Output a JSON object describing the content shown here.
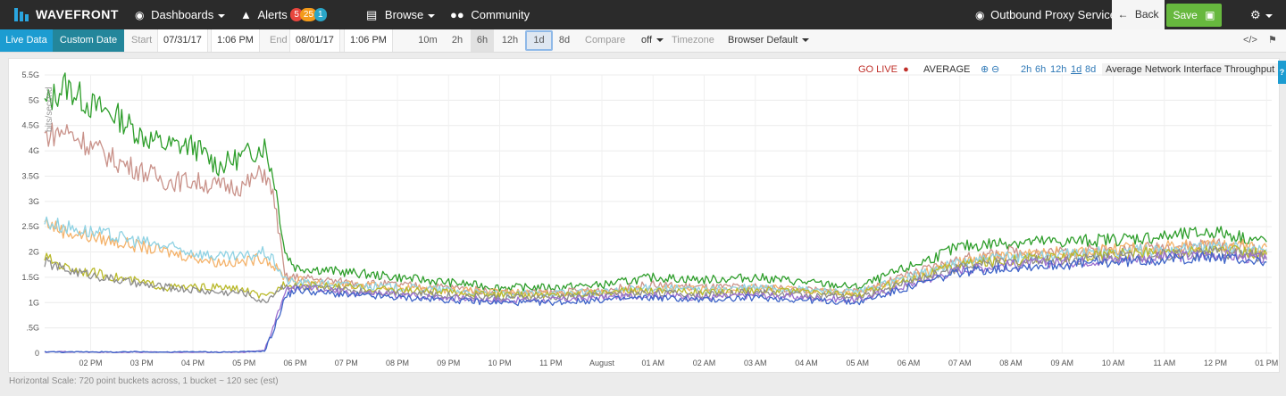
{
  "topbar": {
    "logo": "WAVEFRONT",
    "dashboards": "Dashboards",
    "alerts": "Alerts",
    "alert_counts": [
      "5",
      "25",
      "1"
    ],
    "browse": "Browse",
    "community": "Community",
    "dashboard_name": "Outbound Proxy Service",
    "back": "Back",
    "save": "Save",
    "icons": [
      "dashboard-icon",
      "alert-icon",
      "browse-icon",
      "community-icon",
      "dashboard-icon",
      "back-arrow-icon",
      "save-icon",
      "gear-icon"
    ]
  },
  "toolbar": {
    "live_data": "Live Data",
    "custom_date": "Custom Date",
    "start_label": "Start",
    "start_date": "07/31/17",
    "start_time": "1:06 PM",
    "end_label": "End",
    "end_date": "08/01/17",
    "end_time": "1:06 PM",
    "ranges": [
      "10m",
      "2h",
      "6h",
      "12h",
      "1d",
      "8d"
    ],
    "selected_range": "1d",
    "compare_label": "Compare",
    "compare_value": "off",
    "timezone_label": "Timezone",
    "timezone_value": "Browser Default"
  },
  "chart_controls": {
    "go_live": "GO LIVE",
    "aggregation": "AVERAGE",
    "zoom_ranges": [
      "2h",
      "6h",
      "12h",
      "1d",
      "8d"
    ],
    "title": "Average Network Interface Throughput"
  },
  "footer_note": "Horizontal Scale: 720 point buckets across, 1 bucket ~ 120 sec (est)",
  "chart_data": {
    "type": "line",
    "title": "Average Network Interface Throughput",
    "ylabel": "bits/second",
    "ylim": [
      0,
      5.5
    ],
    "yticks": [
      0,
      0.5,
      1,
      1.5,
      2,
      2.5,
      3,
      3.5,
      4,
      4.5,
      5,
      5.5
    ],
    "ytick_labels": [
      "0",
      ".5G",
      "1G",
      "1.5G",
      "2G",
      "2.5G",
      "3G",
      "3.5G",
      "4G",
      "4.5G",
      "5G",
      "5.5G"
    ],
    "xlim": [
      13.1,
      37.1
    ],
    "xticks": [
      14,
      15,
      16,
      17,
      18,
      19,
      20,
      21,
      22,
      23,
      24,
      25,
      26,
      27,
      28,
      29,
      30,
      31,
      32,
      33,
      34,
      35,
      36,
      37
    ],
    "xtick_labels": [
      "02 PM",
      "03 PM",
      "04 PM",
      "05 PM",
      "06 PM",
      "07 PM",
      "08 PM",
      "09 PM",
      "10 PM",
      "11 PM",
      "August",
      "01 AM",
      "02 AM",
      "03 AM",
      "04 AM",
      "05 AM",
      "06 AM",
      "07 AM",
      "08 AM",
      "09 AM",
      "10 AM",
      "11 AM",
      "12 PM",
      "01 PM"
    ],
    "grid": true,
    "x": [
      13.1,
      13.5,
      14.0,
      14.5,
      15.0,
      15.5,
      16.0,
      16.5,
      17.0,
      17.4,
      17.6,
      17.8,
      18.0,
      19.0,
      20.0,
      21.0,
      22.0,
      23.0,
      24.0,
      25.0,
      26.0,
      27.0,
      28.0,
      29.0,
      30.0,
      31.0,
      32.0,
      33.0,
      34.0,
      35.0,
      36.0,
      37.0
    ],
    "series": [
      {
        "color": "#2e9e2b",
        "values": [
          4.9,
          5.3,
          4.9,
          4.7,
          4.3,
          4.1,
          4.1,
          3.7,
          3.9,
          4.1,
          3.4,
          2.0,
          1.7,
          1.6,
          1.5,
          1.4,
          1.3,
          1.3,
          1.35,
          1.5,
          1.45,
          1.5,
          1.4,
          1.3,
          1.7,
          2.1,
          2.2,
          2.2,
          2.25,
          2.3,
          2.4,
          2.2
        ]
      },
      {
        "color": "#c9928a",
        "values": [
          4.3,
          4.4,
          4.1,
          3.8,
          3.6,
          3.4,
          3.4,
          3.3,
          3.3,
          3.6,
          3.0,
          1.5,
          1.5,
          1.4,
          1.35,
          1.3,
          1.2,
          1.2,
          1.25,
          1.35,
          1.3,
          1.3,
          1.25,
          1.2,
          1.55,
          1.85,
          2.0,
          2.0,
          2.05,
          2.1,
          2.15,
          2.0
        ]
      },
      {
        "color": "#f4b26a",
        "values": [
          2.6,
          2.4,
          2.3,
          2.2,
          2.1,
          2.0,
          1.9,
          1.8,
          1.8,
          1.9,
          1.7,
          1.5,
          1.45,
          1.35,
          1.3,
          1.25,
          1.2,
          1.2,
          1.2,
          1.3,
          1.25,
          1.3,
          1.25,
          1.2,
          1.5,
          1.8,
          1.95,
          2.0,
          2.05,
          2.1,
          2.15,
          2.1
        ]
      },
      {
        "color": "#8fd2e3",
        "values": [
          2.6,
          2.5,
          2.4,
          2.3,
          2.2,
          2.1,
          2.0,
          1.9,
          1.9,
          2.0,
          1.8,
          1.45,
          1.4,
          1.35,
          1.3,
          1.25,
          1.15,
          1.2,
          1.2,
          1.3,
          1.25,
          1.3,
          1.25,
          1.2,
          1.5,
          1.8,
          1.9,
          1.95,
          2.0,
          2.05,
          2.1,
          2.05
        ]
      },
      {
        "color": "#b9b92a",
        "values": [
          1.9,
          1.7,
          1.6,
          1.5,
          1.4,
          1.3,
          1.3,
          1.3,
          1.25,
          1.1,
          1.2,
          1.4,
          1.35,
          1.3,
          1.25,
          1.2,
          1.15,
          1.15,
          1.2,
          1.25,
          1.2,
          1.25,
          1.2,
          1.15,
          1.45,
          1.75,
          1.85,
          1.9,
          1.95,
          2.0,
          2.05,
          1.95
        ]
      },
      {
        "color": "#8c8c8c",
        "values": [
          1.8,
          1.65,
          1.55,
          1.45,
          1.35,
          1.3,
          1.25,
          1.2,
          1.2,
          1.0,
          1.2,
          1.35,
          1.3,
          1.25,
          1.2,
          1.15,
          1.1,
          1.1,
          1.15,
          1.2,
          1.15,
          1.2,
          1.15,
          1.1,
          1.4,
          1.7,
          1.8,
          1.85,
          1.9,
          1.95,
          2.0,
          1.9
        ]
      },
      {
        "color": "#9b6fd0",
        "values": [
          0.02,
          0.03,
          0.02,
          0.02,
          0.02,
          0.02,
          0.02,
          0.02,
          0.02,
          0.05,
          0.6,
          1.2,
          1.3,
          1.2,
          1.15,
          1.1,
          1.05,
          1.05,
          1.1,
          1.15,
          1.1,
          1.15,
          1.1,
          1.05,
          1.35,
          1.65,
          1.75,
          1.8,
          1.85,
          1.9,
          1.95,
          1.85
        ]
      },
      {
        "color": "#3e64c8",
        "values": [
          0.03,
          0.02,
          0.03,
          0.02,
          0.03,
          0.02,
          0.03,
          0.02,
          0.03,
          0.04,
          0.5,
          1.1,
          1.25,
          1.15,
          1.1,
          1.05,
          1.0,
          1.0,
          1.05,
          1.1,
          1.05,
          1.1,
          1.05,
          1.0,
          1.3,
          1.6,
          1.7,
          1.75,
          1.8,
          1.85,
          1.9,
          1.8
        ]
      }
    ]
  }
}
